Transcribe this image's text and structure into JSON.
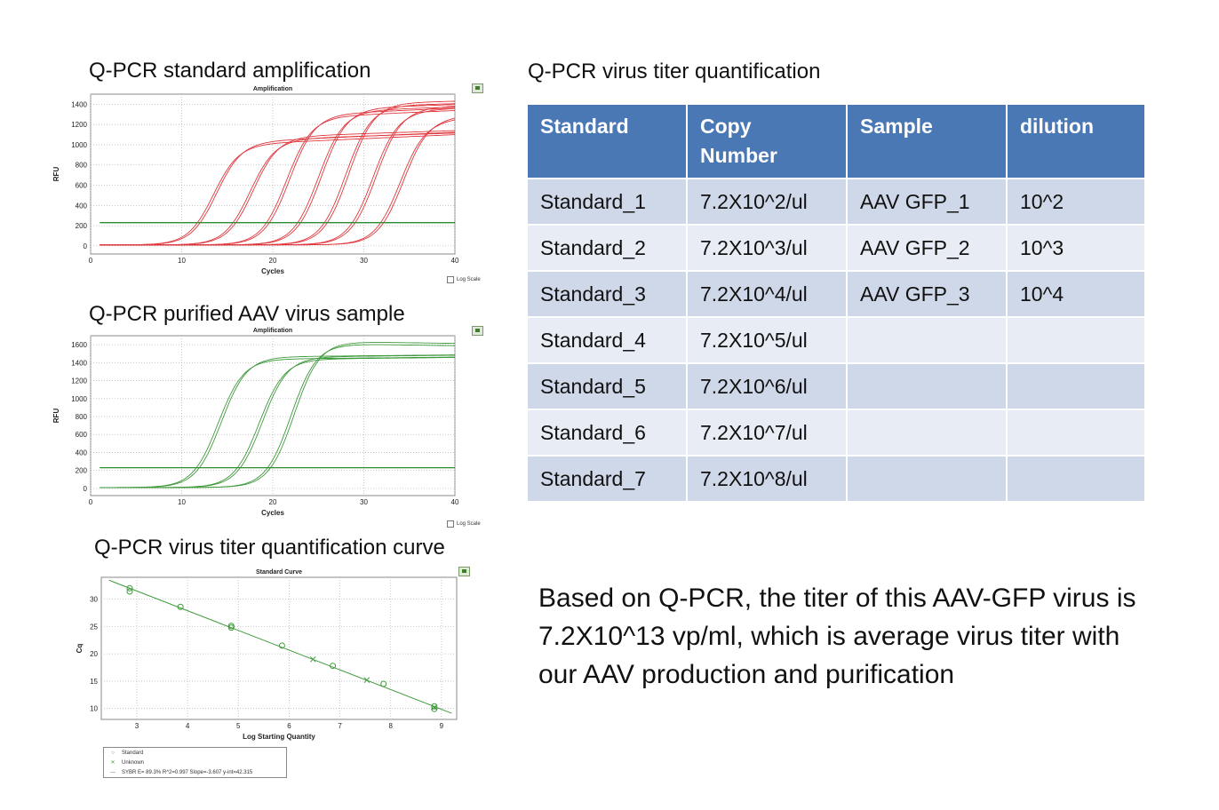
{
  "headings": {
    "std_amp": "Q-PCR standard amplification",
    "aav_sample": "Q-PCR purified AAV virus sample",
    "quant_curve": "Q-PCR virus titer quantification curve",
    "table_title": "Q-PCR virus titer quantification"
  },
  "table": {
    "headers": [
      "Standard",
      "Copy Number",
      "Sample",
      "dilution"
    ],
    "rows": [
      [
        "Standard_1",
        "7.2X10^2/ul",
        "AAV GFP_1",
        "10^2"
      ],
      [
        "Standard_2",
        "7.2X10^3/ul",
        "AAV GFP_2",
        "10^3"
      ],
      [
        "Standard_3",
        "7.2X10^4/ul",
        "AAV GFP_3",
        "10^4"
      ],
      [
        "Standard_4",
        "7.2X10^5/ul",
        "",
        ""
      ],
      [
        "Standard_5",
        "7.2X10^6/ul",
        "",
        ""
      ],
      [
        "Standard_6",
        "7.2X10^7/ul",
        "",
        ""
      ],
      [
        "Standard_7",
        "7.2X10^8/ul",
        "",
        ""
      ]
    ]
  },
  "conclusion": "Based on Q-PCR, the titer of this  AAV-GFP virus is 7.2X10^13 vp/ml, which is average virus titer with our AAV production and purification",
  "colors": {
    "standard_curves": "#e0383e",
    "sample_curves": "#3f9a3c",
    "threshold": "#2e8b2e",
    "header_bg": "#4a78b5"
  },
  "log_scale_label": "Log Scale",
  "legend": {
    "standard": "Standard",
    "unknown": "Unknown",
    "fit": "SYBR    E= 89.3% R^2=0.997 Slope=-3.607 y-int=42.315"
  },
  "chart_data": [
    {
      "type": "line",
      "title": "Amplification",
      "xlabel": "Cycles",
      "ylabel": "RFU",
      "xlim": [
        0,
        40
      ],
      "ylim": [
        -80,
        1500
      ],
      "xticks": [
        0,
        10,
        20,
        30,
        40
      ],
      "yticks": [
        0,
        200,
        400,
        600,
        800,
        1000,
        1200,
        1400
      ],
      "threshold": 230,
      "grid": true,
      "curves": [
        {
          "midpoint": 13.5,
          "plateau": 1000,
          "drift": 80,
          "count": 2
        },
        {
          "midpoint": 17.5,
          "plateau": 1050,
          "drift": 60,
          "count": 2
        },
        {
          "midpoint": 21.5,
          "plateau": 1270,
          "drift": 80,
          "count": 2
        },
        {
          "midpoint": 25.0,
          "plateau": 1330,
          "drift": 60,
          "count": 2
        },
        {
          "midpoint": 28.0,
          "plateau": 1380,
          "drift": 40,
          "count": 2
        },
        {
          "midpoint": 31.0,
          "plateau": 1330,
          "drift": 80,
          "count": 2
        },
        {
          "midpoint": 34.0,
          "plateau": 1240,
          "drift": 120,
          "count": 2
        }
      ]
    },
    {
      "type": "line",
      "title": "Amplification",
      "xlabel": "Cycles",
      "ylabel": "RFU",
      "xlim": [
        0,
        40
      ],
      "ylim": [
        -80,
        1700
      ],
      "xticks": [
        0,
        10,
        20,
        30,
        40
      ],
      "yticks": [
        0,
        200,
        400,
        600,
        800,
        1000,
        1200,
        1400,
        1600
      ],
      "threshold": 230,
      "grid": true,
      "curves": [
        {
          "midpoint": 14.0,
          "plateau": 1430,
          "drift": 20,
          "count": 2
        },
        {
          "midpoint": 18.5,
          "plateau": 1430,
          "drift": 20,
          "count": 2
        },
        {
          "midpoint": 22.0,
          "plateau": 1600,
          "drift": -30,
          "count": 2
        }
      ]
    },
    {
      "type": "scatter",
      "title": "Standard Curve",
      "xlabel": "Log Starting Quantity",
      "ylabel": "Cq",
      "xlim": [
        2.3,
        9.3
      ],
      "ylim": [
        8,
        34
      ],
      "xticks": [
        3,
        4,
        5,
        6,
        7,
        8,
        9
      ],
      "yticks": [
        10,
        15,
        20,
        25,
        30
      ],
      "fit": {
        "slope": -3.607,
        "intercept": 42.315,
        "x_range": [
          2.45,
          9.2
        ]
      },
      "standards": [
        {
          "x": 2.86,
          "y": 32.0
        },
        {
          "x": 2.86,
          "y": 31.4
        },
        {
          "x": 3.86,
          "y": 28.6
        },
        {
          "x": 4.86,
          "y": 25.1
        },
        {
          "x": 4.86,
          "y": 24.8
        },
        {
          "x": 5.86,
          "y": 21.5
        },
        {
          "x": 6.86,
          "y": 17.8
        },
        {
          "x": 7.86,
          "y": 14.5
        },
        {
          "x": 8.86,
          "y": 10.4
        },
        {
          "x": 8.86,
          "y": 9.9
        }
      ],
      "unknowns": [
        {
          "x": 6.47,
          "y": 19.0
        },
        {
          "x": 7.53,
          "y": 15.2
        },
        {
          "x": 8.86,
          "y": 10.2
        }
      ]
    }
  ]
}
